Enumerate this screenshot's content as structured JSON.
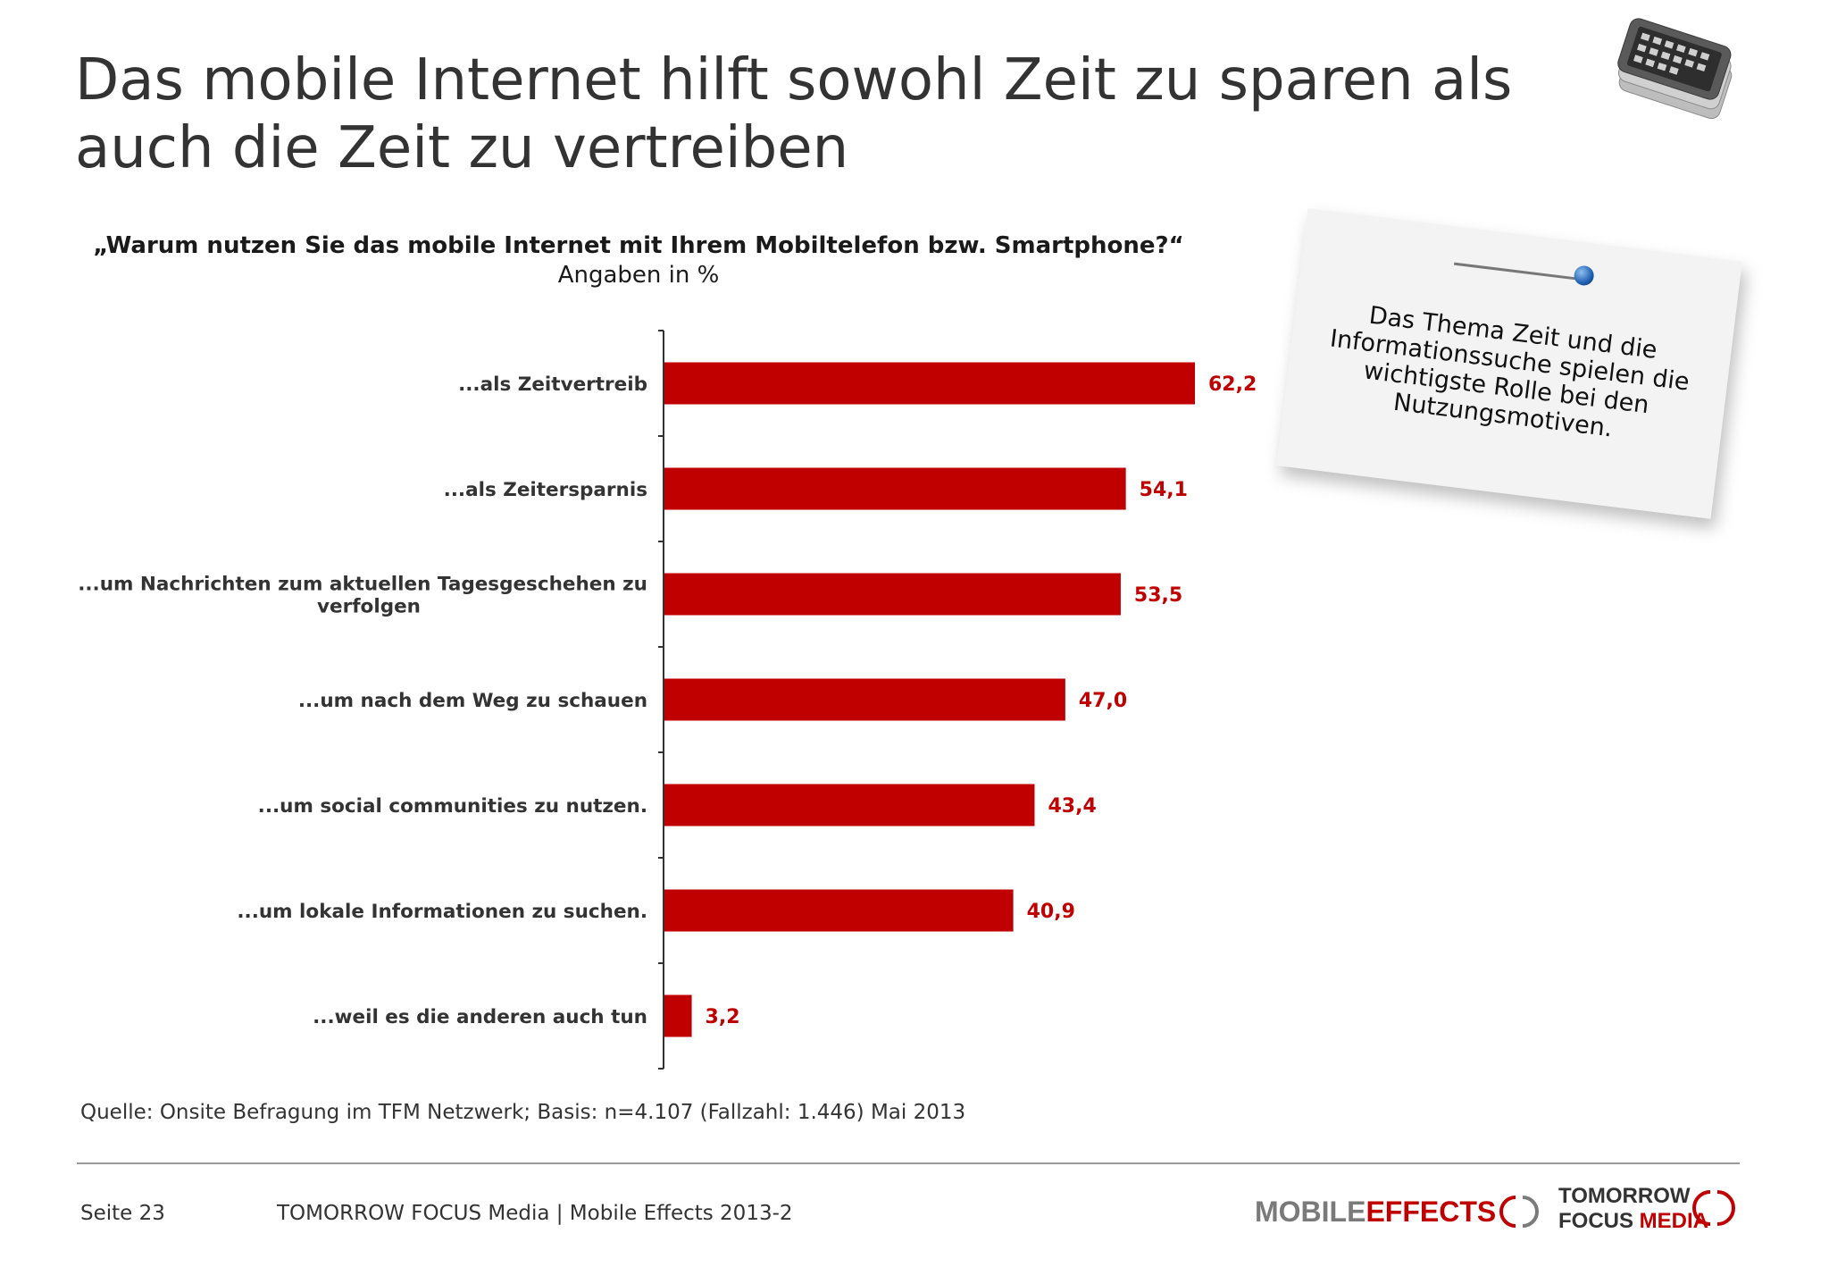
{
  "title": "Das mobile Internet hilft sowohl Zeit zu sparen als auch die Zeit zu vertreiben",
  "question": "„Warum nutzen Sie das mobile Internet mit Ihrem Mobiltelefon bzw. Smartphone?“",
  "unit": "Angaben in %",
  "note": "Das Thema Zeit und die Informationssuche spielen die wichtigste Rolle bei den Nutzungsmotiven.",
  "chart_data": {
    "type": "bar",
    "orientation": "horizontal",
    "categories": [
      [
        "...als Zeitvertreib"
      ],
      [
        "...als Zeitersparnis"
      ],
      [
        "...um Nachrichten zum aktuellen Tagesgeschehen zu",
        "verfolgen"
      ],
      [
        "...um nach dem Weg zu schauen"
      ],
      [
        "...um social communities zu nutzen."
      ],
      [
        "...um lokale Informationen zu suchen."
      ],
      [
        "...weil es die anderen auch tun"
      ]
    ],
    "values": [
      62.2,
      54.1,
      53.5,
      47.0,
      43.4,
      40.9,
      3.2
    ],
    "value_labels": [
      "62,2",
      "54,1",
      "53,5",
      "47,0",
      "43,4",
      "40,9",
      "3,2"
    ],
    "xlim": [
      0,
      100
    ],
    "bar_color": "#c00000",
    "label_color": "#c00000",
    "grid": false,
    "legend": "none"
  },
  "source": "Quelle: Onsite Befragung im TFM Netzwerk; Basis: n=4.107 (Fallzahl: 1.446) Mai 2013",
  "footer": {
    "page": "Seite 23",
    "text": "TOMORROW FOCUS Media | Mobile Effects 2013-2",
    "logo_mobile_effects": "MOBILE EFFECTS",
    "logo_tfm_line1": "TOMORROW",
    "logo_tfm_line2": "FOCUS MEDIA"
  },
  "icons": [
    "smartphone-stack-icon",
    "pin-icon"
  ],
  "colors": {
    "accent": "#c00000",
    "text": "#333333"
  }
}
